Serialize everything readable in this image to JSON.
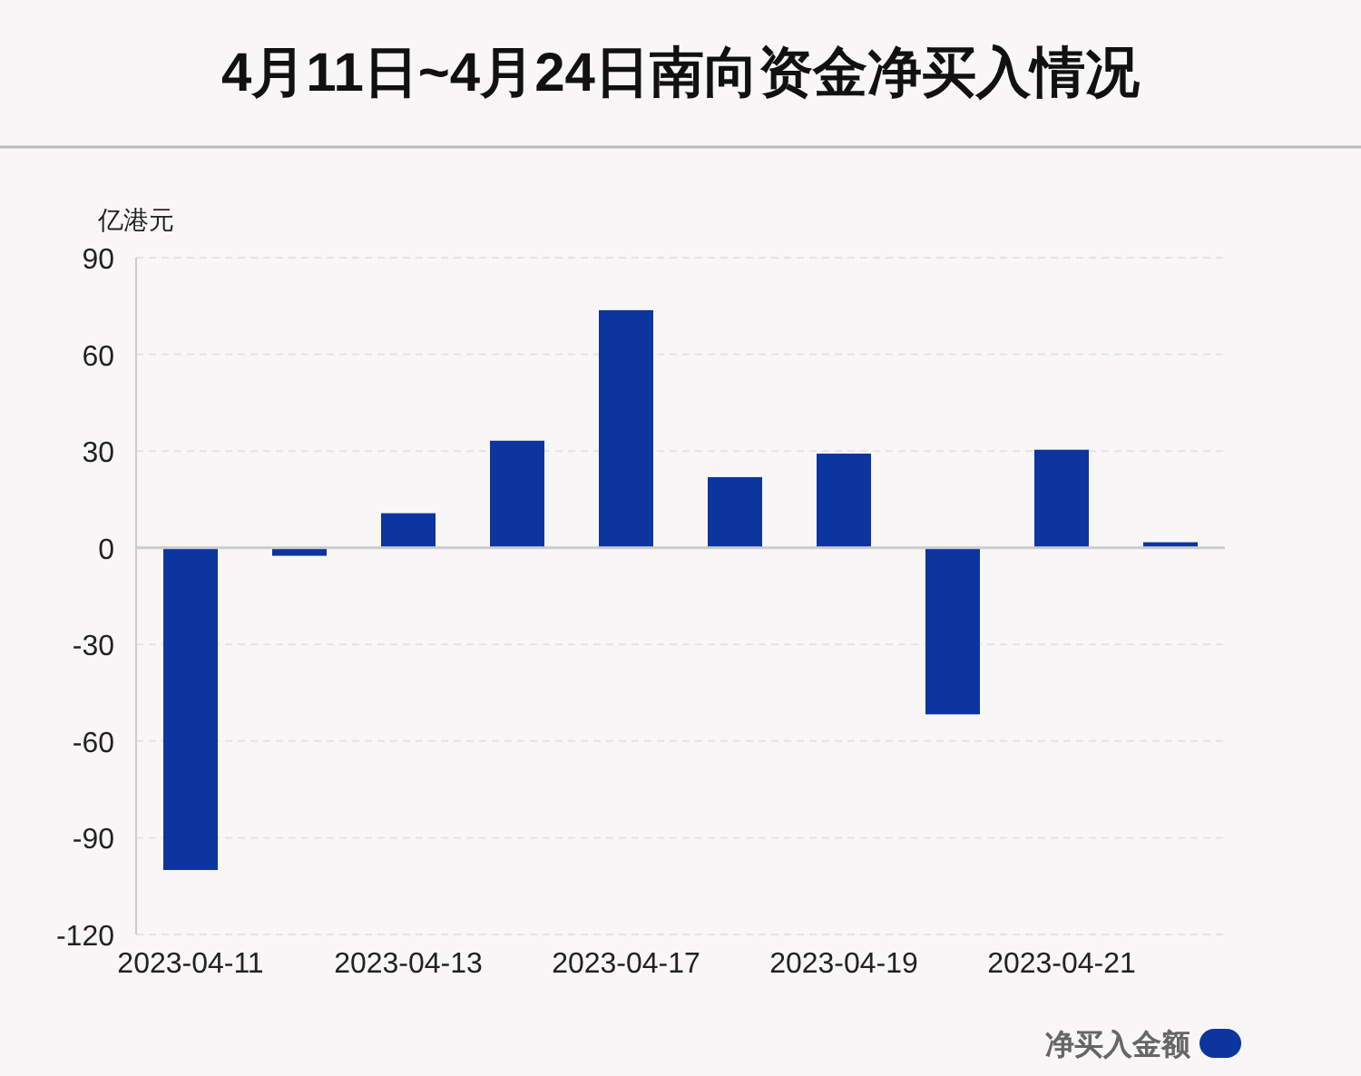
{
  "chart_data": {
    "type": "bar",
    "title": "4月11日~4月24日南向资金净买入情况",
    "ylabel": "亿港元",
    "categories": [
      "2023-04-11",
      null,
      "2023-04-13",
      null,
      "2023-04-17",
      null,
      "2023-04-19",
      null,
      "2023-04-21",
      null
    ],
    "series": [
      {
        "name": "净买入金额",
        "color": "#0c35a0",
        "values": [
          -100,
          -2.5,
          10.7,
          33.2,
          73.7,
          21.9,
          29.2,
          -51.7,
          30.4,
          1.7
        ]
      }
    ],
    "ylim": [
      -120,
      90
    ],
    "yticks": [
      -120,
      -90,
      -60,
      -30,
      0,
      30,
      60,
      90
    ],
    "grid": "y",
    "legend": "bottom right"
  }
}
